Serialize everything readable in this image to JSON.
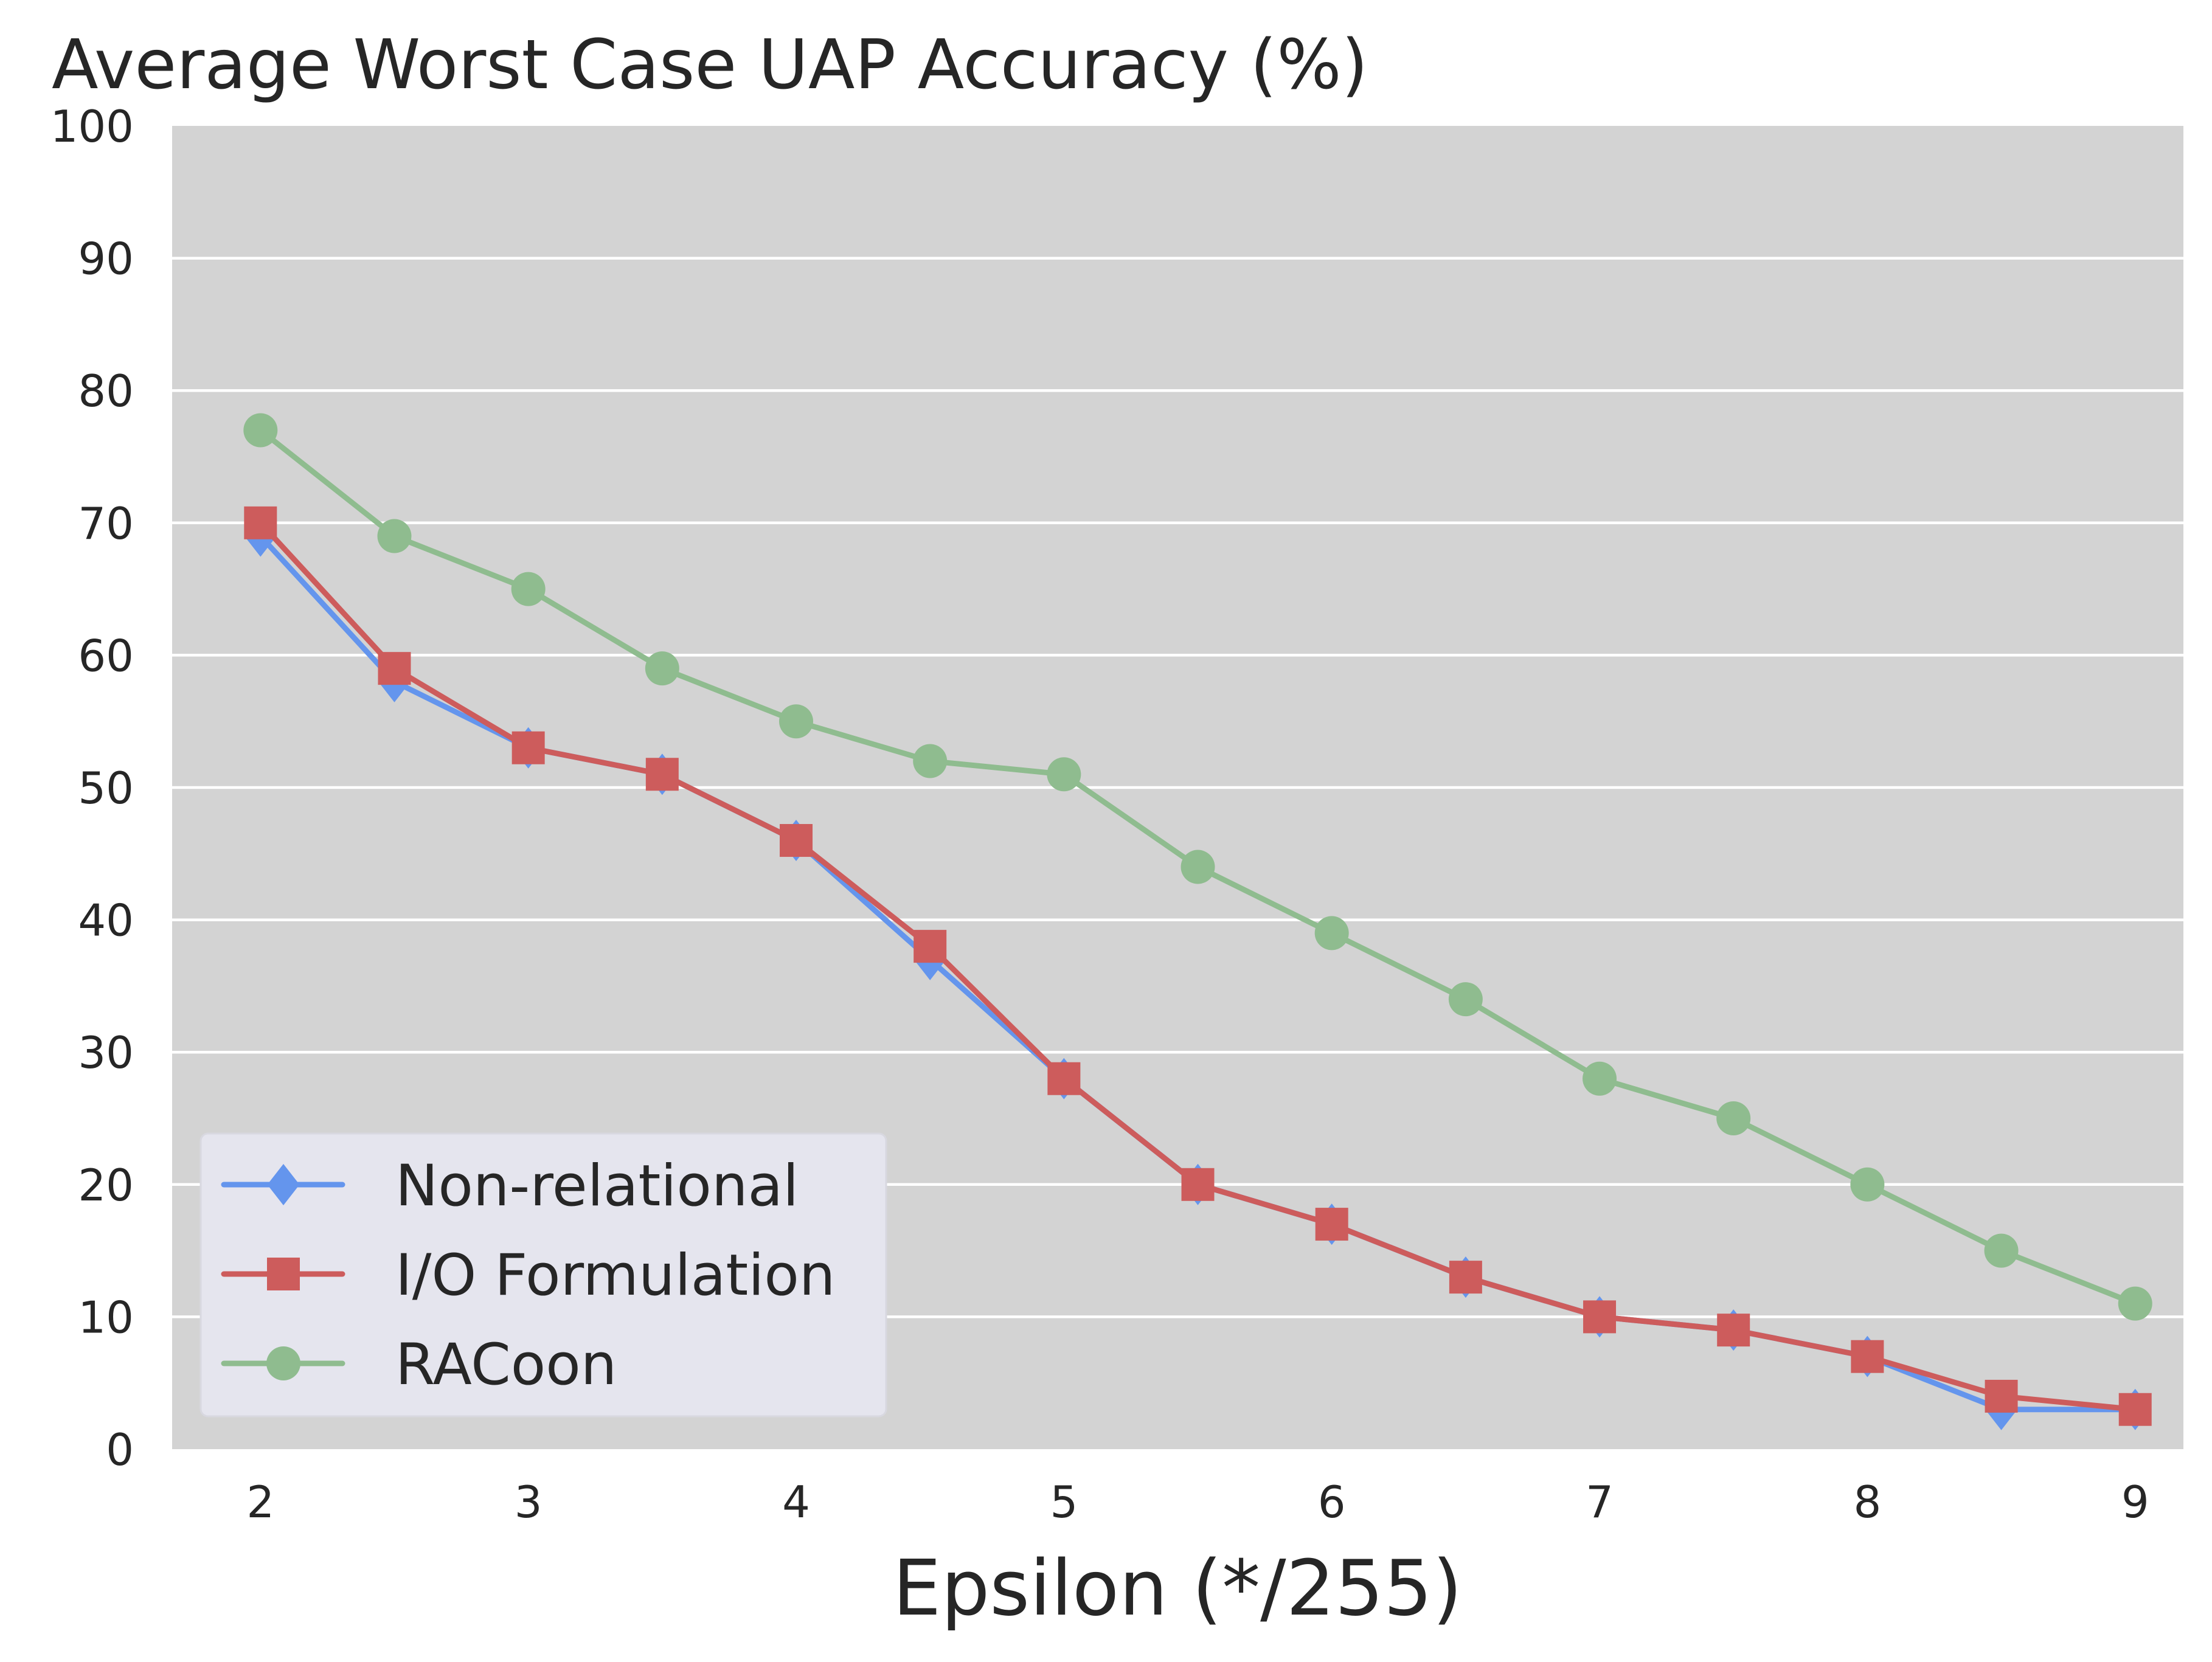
{
  "chart_data": {
    "type": "line",
    "title": "Average Worst Case UAP Accuracy (%)",
    "xlabel": "Epsilon (*/255)",
    "ylabel": "",
    "x": [
      2,
      2.5,
      3,
      3.5,
      4,
      4.5,
      5,
      5.5,
      6,
      6.5,
      7,
      7.5,
      8,
      8.5,
      9
    ],
    "xticks": [
      2,
      3,
      4,
      5,
      6,
      7,
      8,
      9
    ],
    "yticks": [
      0,
      10,
      20,
      30,
      40,
      50,
      60,
      70,
      80,
      90,
      100
    ],
    "xlim": [
      1.67,
      9.18
    ],
    "ylim": [
      0,
      100
    ],
    "grid": true,
    "legend_position": "lower-left",
    "series": [
      {
        "name": "Non-relational",
        "color": "#6495ED",
        "marker": "diamond",
        "values": [
          69,
          58,
          53,
          51,
          46,
          37,
          28,
          20,
          17,
          13,
          10,
          9,
          7,
          3,
          3
        ]
      },
      {
        "name": "I/O Formulation",
        "color": "#CD5C5C",
        "marker": "square",
        "values": [
          70,
          59,
          53,
          51,
          46,
          38,
          28,
          20,
          17,
          13,
          10,
          9,
          7,
          4,
          3
        ]
      },
      {
        "name": "RACoon",
        "color": "#8FBC8F",
        "marker": "circle",
        "values": [
          77,
          69,
          65,
          59,
          55,
          52,
          51,
          44,
          39,
          34,
          28,
          25,
          20,
          15,
          11
        ]
      }
    ]
  }
}
